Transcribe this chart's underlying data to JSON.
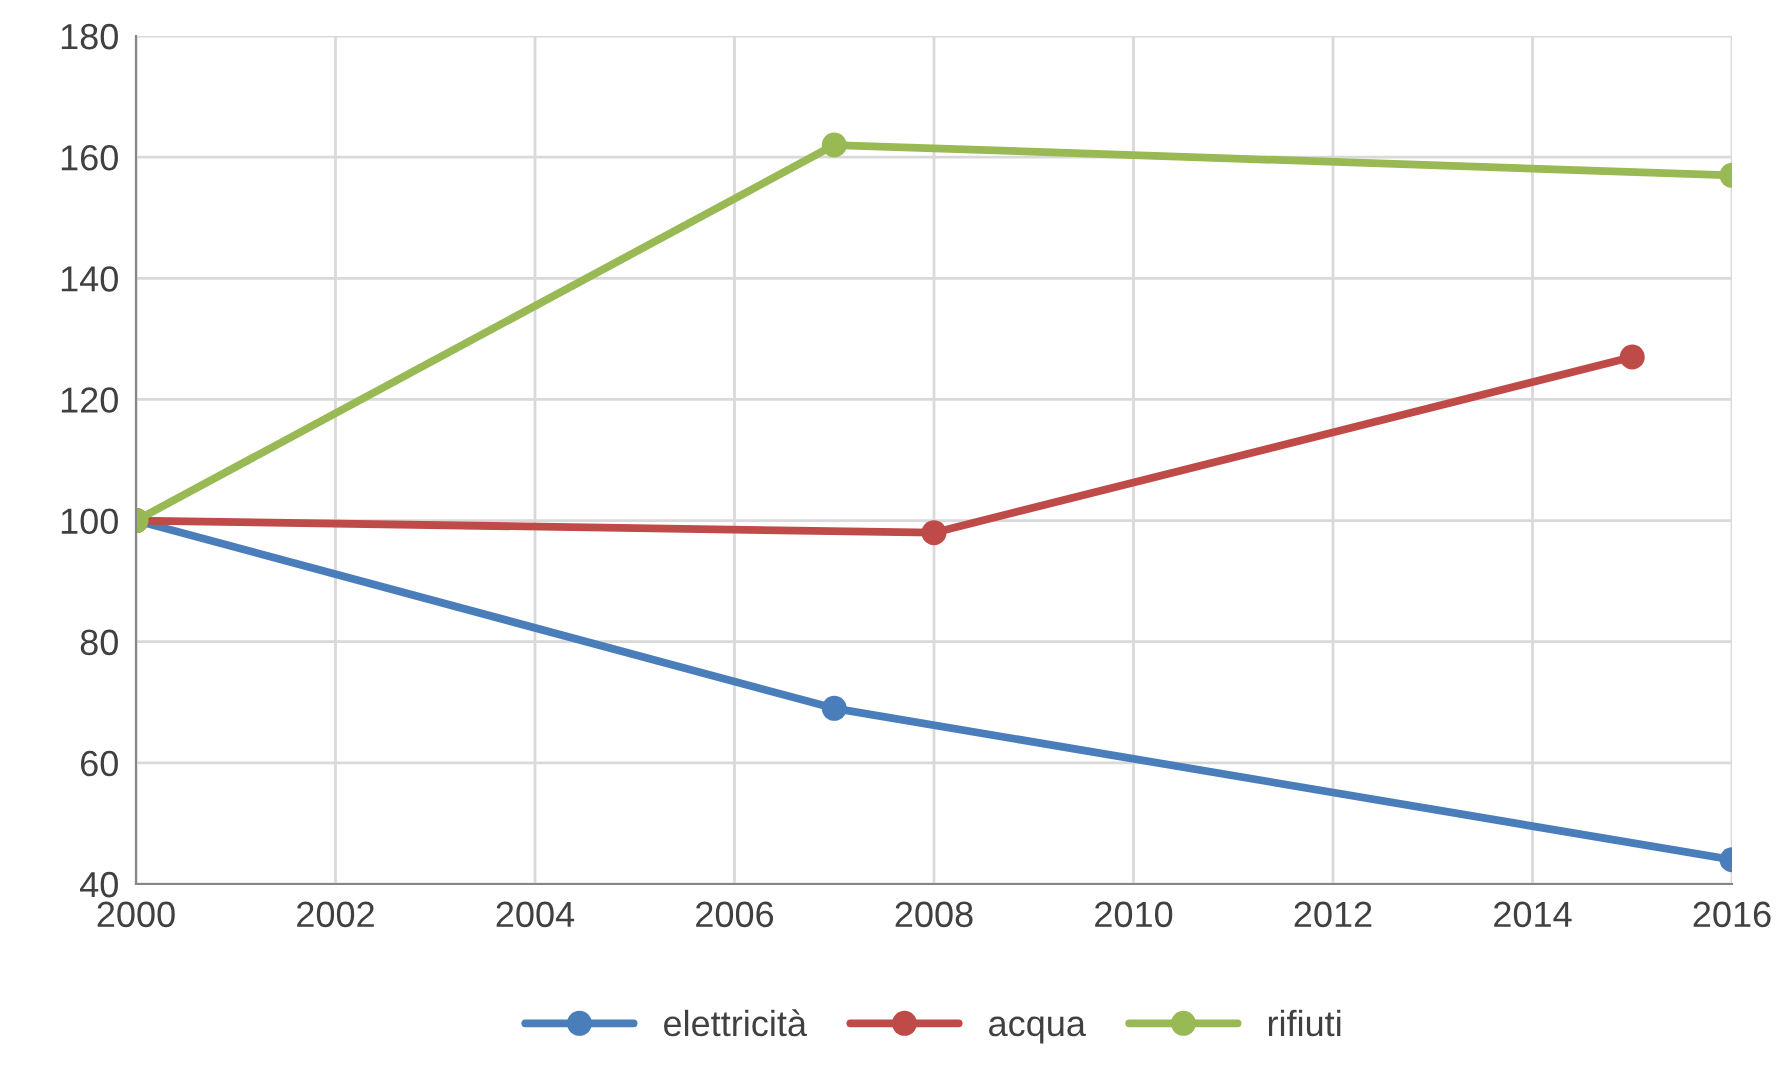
{
  "chart_data": {
    "type": "line",
    "series": [
      {
        "name": "elettricità",
        "color": "#4a7ebb",
        "x": [
          2000,
          2007,
          2016
        ],
        "values": [
          100,
          69,
          44
        ]
      },
      {
        "name": "acqua",
        "color": "#be4b48",
        "x": [
          2000,
          2008,
          2015
        ],
        "values": [
          100,
          98,
          127
        ]
      },
      {
        "name": "rifiuti",
        "color": "#98b954",
        "x": [
          2000,
          2007,
          2016
        ],
        "values": [
          100,
          162,
          157
        ]
      }
    ],
    "xlim": [
      2000,
      2016
    ],
    "xticks": [
      2000,
      2002,
      2004,
      2006,
      2008,
      2010,
      2012,
      2014,
      2016
    ],
    "ylim": [
      40,
      180
    ],
    "yticks": [
      40,
      60,
      80,
      100,
      120,
      140,
      160,
      180
    ],
    "grid": true,
    "legend": "bottom",
    "marker": "circle",
    "line_style": "solid"
  }
}
